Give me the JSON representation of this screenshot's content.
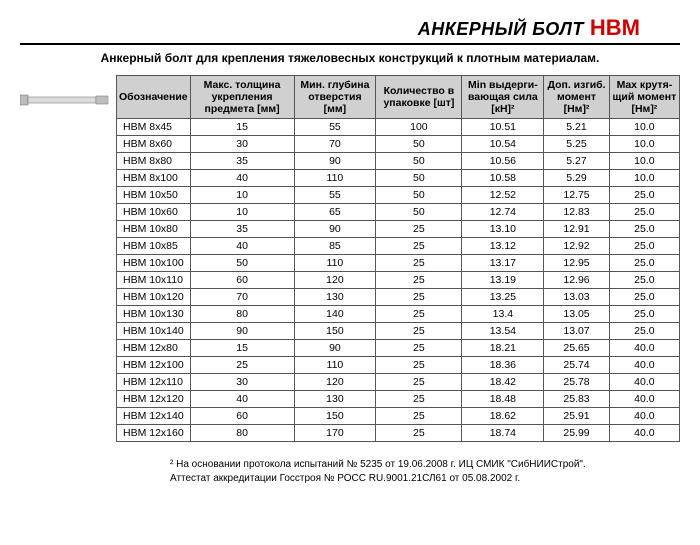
{
  "title": {
    "black": "АНКЕРНЫЙ БОЛТ",
    "red": "HBM"
  },
  "subtitle": "Анкерный болт для крепления тяжеловесных конструкций к плотным материалам.",
  "columns": [
    "Обозначение",
    "Макс. толщина укрепления предмета [мм]",
    "Мин. глубина отверстия [мм]",
    "Количество в упаковке [шт]",
    "Min выдерги-вающая сила [кН]²",
    "Доп. изгиб. момент [Нм]²",
    "Max крутя-щий момент [Нм]²"
  ],
  "rows": [
    [
      "HBM 8x45",
      "15",
      "55",
      "100",
      "10.51",
      "5.21",
      "10.0"
    ],
    [
      "HBM 8x60",
      "30",
      "70",
      "50",
      "10.54",
      "5.25",
      "10.0"
    ],
    [
      "HBM 8x80",
      "35",
      "90",
      "50",
      "10.56",
      "5.27",
      "10.0"
    ],
    [
      "HBM 8x100",
      "40",
      "110",
      "50",
      "10.58",
      "5.29",
      "10.0"
    ],
    [
      "HBM 10x50",
      "10",
      "55",
      "50",
      "12.52",
      "12.75",
      "25.0"
    ],
    [
      "HBM 10x60",
      "10",
      "65",
      "50",
      "12.74",
      "12.83",
      "25.0"
    ],
    [
      "HBM 10x80",
      "35",
      "90",
      "25",
      "13.10",
      "12.91",
      "25.0"
    ],
    [
      "HBM 10x85",
      "40",
      "85",
      "25",
      "13.12",
      "12.92",
      "25.0"
    ],
    [
      "HBM 10x100",
      "50",
      "110",
      "25",
      "13.17",
      "12.95",
      "25.0"
    ],
    [
      "HBM 10x110",
      "60",
      "120",
      "25",
      "13.19",
      "12.96",
      "25.0"
    ],
    [
      "HBM 10x120",
      "70",
      "130",
      "25",
      "13.25",
      "13.03",
      "25.0"
    ],
    [
      "HBM 10x130",
      "80",
      "140",
      "25",
      "13.4",
      "13.05",
      "25.0"
    ],
    [
      "HBM 10x140",
      "90",
      "150",
      "25",
      "13.54",
      "13.07",
      "25.0"
    ],
    [
      "HBM 12x80",
      "15",
      "90",
      "25",
      "18.21",
      "25.65",
      "40.0"
    ],
    [
      "HBM 12x100",
      "25",
      "110",
      "25",
      "18.36",
      "25.74",
      "40.0"
    ],
    [
      "HBM 12x110",
      "30",
      "120",
      "25",
      "18.42",
      "25.78",
      "40.0"
    ],
    [
      "HBM 12x120",
      "40",
      "130",
      "25",
      "18.48",
      "25.83",
      "40.0"
    ],
    [
      "HBM 12x140",
      "60",
      "150",
      "25",
      "18.62",
      "25.91",
      "40.0"
    ],
    [
      "HBM 12x160",
      "80",
      "170",
      "25",
      "18.74",
      "25.99",
      "40.0"
    ]
  ],
  "footnote": {
    "line1": "² На основании протокола испытаний № 5235 от 19.06.2008 г. ИЦ СМИК \"СибНИИСтрой\".",
    "line2": "Аттестат аккредитации Госстроя № РОСС RU.9001.21СЛ61 от 05.08.2002 г."
  },
  "colors": {
    "red": "#c00",
    "header_bg": "#d0d0d0",
    "border": "#555"
  }
}
